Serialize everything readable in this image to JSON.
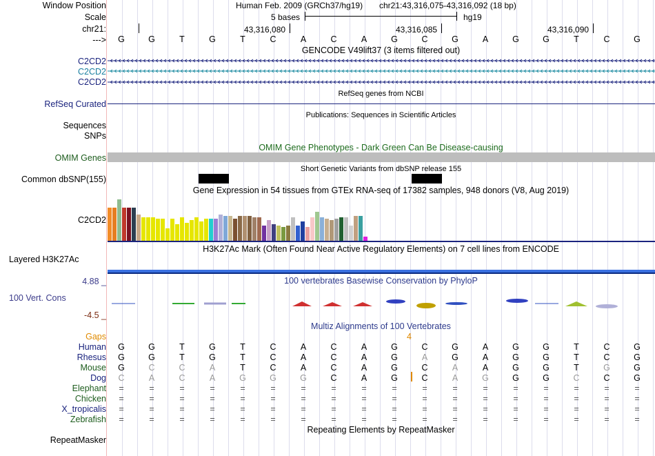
{
  "header": {
    "window_position_label": "Window Position",
    "scale_label": "Scale",
    "chrom_label": "chr21:",
    "strand_label": "--->",
    "assembly_text": "Human Feb. 2009 (GRCh37/hg19)",
    "position_text": "chr21:43,316,075-43,316,092 (18 bp)",
    "scale_text": "5 bases",
    "scale_db": "hg19",
    "coords": [
      "43,316,080",
      "43,316,085",
      "43,316,090"
    ]
  },
  "sequence": [
    "G",
    "G",
    "T",
    "G",
    "T",
    "C",
    "A",
    "C",
    "A",
    "G",
    "C",
    "G",
    "A",
    "G",
    "G",
    "T",
    "C",
    "G"
  ],
  "tracks": {
    "gencode": {
      "title": "GENCODE V49lift37 (3 items filtered out)",
      "items": [
        "C2CD2",
        "C2CD2",
        "C2CD2"
      ]
    },
    "refseq": {
      "title": "RefSeq genes from NCBI",
      "label": "RefSeq Curated"
    },
    "publications": {
      "title": "Publications: Sequences in Scientific Articles",
      "label1": "Sequences",
      "label2": "SNPs"
    },
    "omim": {
      "title": "OMIM Gene Phenotypes - Dark Green Can Be Disease-causing",
      "label": "OMIM Genes"
    },
    "dbsnp": {
      "title": "Short Genetic Variants from dbSNP release 155",
      "label": "Common dbSNP(155)"
    },
    "gtex": {
      "title": "Gene Expression in 54 tissues from GTEx RNA-seq of 17382 samples, 948 donors (V8, Aug 2019)",
      "label": "C2CD2",
      "values": [
        48,
        48,
        60,
        48,
        48,
        48,
        38,
        34,
        34,
        34,
        32,
        32,
        18,
        32,
        24,
        34,
        26,
        30,
        34,
        28,
        32,
        32,
        32,
        38,
        36,
        36,
        32,
        36,
        36,
        36,
        34,
        34,
        22,
        30,
        24,
        22,
        20,
        22,
        34,
        22,
        28,
        20,
        34,
        42,
        34,
        32,
        30,
        32,
        34,
        34,
        22,
        36,
        36,
        6
      ],
      "colors": [
        "#f28c28",
        "#e67e22",
        "#8fbc8f",
        "#c0392b",
        "#7b1020",
        "#2c3e50",
        "#c8a888",
        "#e6e600",
        "#e6e600",
        "#e6e600",
        "#e6e600",
        "#e6e600",
        "#e6e600",
        "#e6e600",
        "#e6e600",
        "#e6e600",
        "#e6e600",
        "#e6e600",
        "#e6e600",
        "#e6e600",
        "#e6e600",
        "#22cfcf",
        "#9b7fd4",
        "#b0b0d8",
        "#7fa8d8",
        "#c8b890",
        "#7a5030",
        "#8a6a48",
        "#b09070",
        "#806040",
        "#a08068",
        "#a06a50",
        "#7030a0",
        "#c8a0c8",
        "#404080",
        "#c0c060",
        "#7a9a40",
        "#8a7a40",
        "#c0c0c0",
        "#3060d0",
        "#2040a0",
        "#e8a0a0",
        "#f8c8c8",
        "#a0c890",
        "#8ab0d8",
        "#c8b090",
        "#b09878",
        "#a0a0a0",
        "#206030",
        "#c0c0c0",
        "#d0d0d0",
        "#c0a080",
        "#3aa0a0",
        "#e020e0"
      ]
    },
    "h3k27ac": {
      "title": "H3K27Ac Mark (Often Found Near Active Regulatory Elements) on 7 cell lines from ENCODE",
      "label": "Layered H3K27Ac"
    },
    "conservation": {
      "title": "100 vertebrates Basewise Conservation by PhyloP",
      "label": "100 Vert. Cons",
      "max_label": "4.88 _",
      "min_label": "-4.5 _"
    },
    "multiz": {
      "title": "Multiz Alignments of 100 Vertebrates",
      "gaps_label": "Gaps",
      "gap_count": "4",
      "species": [
        {
          "name": "Human",
          "seq": [
            "G",
            "G",
            "T",
            "G",
            "T",
            "C",
            "A",
            "C",
            "A",
            "G",
            "C",
            "G",
            "A",
            "G",
            "G",
            "T",
            "C",
            "G"
          ]
        },
        {
          "name": "Rhesus",
          "seq": [
            "G",
            "G",
            "T",
            "G",
            "T",
            "C",
            "A",
            "C",
            "A",
            "G",
            "A",
            "G",
            "A",
            "G",
            "G",
            "T",
            "C",
            "G"
          ]
        },
        {
          "name": "Mouse",
          "seq": [
            "G",
            "C",
            "C",
            "A",
            "T",
            "C",
            "A",
            "C",
            "A",
            "G",
            "C",
            "A",
            "A",
            "G",
            "G",
            "T",
            "G",
            "G"
          ]
        },
        {
          "name": "Dog",
          "seq": [
            "C",
            "A",
            "C",
            "A",
            "G",
            "G",
            "G",
            "C",
            "A",
            "G",
            "C",
            "A",
            "G",
            "G",
            "G",
            "C",
            "C",
            "G"
          ]
        },
        {
          "name": "Elephant",
          "seq": [
            "=",
            "=",
            "=",
            "=",
            "=",
            "=",
            "=",
            "=",
            "=",
            "=",
            "=",
            "=",
            "=",
            "=",
            "=",
            "=",
            "=",
            "="
          ]
        },
        {
          "name": "Chicken",
          "seq": [
            "=",
            "=",
            "=",
            "=",
            "=",
            "=",
            "=",
            "=",
            "=",
            "=",
            "=",
            "=",
            "=",
            "=",
            "=",
            "=",
            "=",
            "="
          ]
        },
        {
          "name": "X_tropicalis",
          "seq": [
            "=",
            "=",
            "=",
            "=",
            "=",
            "=",
            "=",
            "=",
            "=",
            "=",
            "=",
            "=",
            "=",
            "=",
            "=",
            "=",
            "=",
            "="
          ]
        },
        {
          "name": "Zebrafish",
          "seq": [
            "=",
            "=",
            "=",
            "=",
            "=",
            "=",
            "=",
            "=",
            "=",
            "=",
            "=",
            "=",
            "=",
            "=",
            "=",
            "=",
            "=",
            "="
          ]
        }
      ]
    },
    "repeatmasker": {
      "title": "Repeating Elements by RepeatMasker",
      "label": "RepeatMasker"
    }
  }
}
